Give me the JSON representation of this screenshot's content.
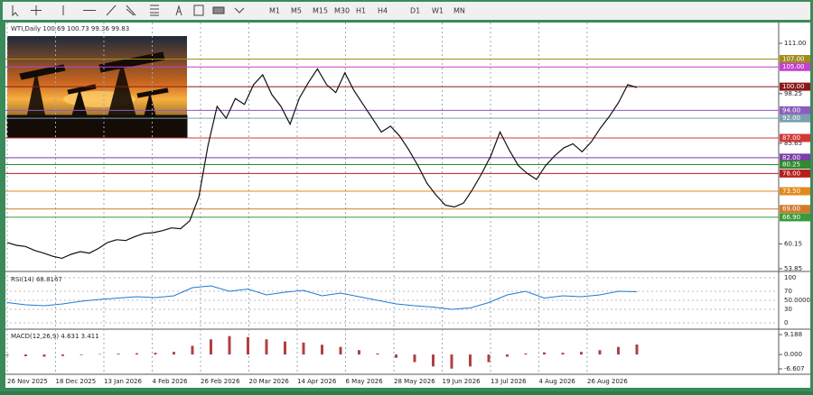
{
  "toolbar": {
    "timeframes": [
      "M1",
      "M5",
      "M15",
      "M30",
      "H1",
      "H4",
      "D1",
      "W1",
      "MN"
    ]
  },
  "chart": {
    "header": "WTI,Daily  100.69 100.73 99.36 99.83",
    "ylim": [
      53.85,
      111.0
    ],
    "price_ticks": [
      {
        "value": 111.0,
        "label": "111.00"
      },
      {
        "value": 98.25,
        "label": "98.25"
      },
      {
        "value": 85.65,
        "label": "85.65"
      },
      {
        "value": 60.15,
        "label": "60.15"
      },
      {
        "value": 53.85,
        "label": "53.85"
      }
    ],
    "levels": [
      {
        "value": 107.0,
        "label": "107.00",
        "color": "#a08c1c"
      },
      {
        "value": 105.0,
        "label": "105.00",
        "color": "#c63fd0"
      },
      {
        "value": 100.0,
        "label": "100.00",
        "color": "#8b1a1a"
      },
      {
        "value": 94.0,
        "label": "94.00",
        "color": "#8b5cc0"
      },
      {
        "value": 92.0,
        "label": "92.00",
        "color": "#7aa0b0"
      },
      {
        "value": 87.0,
        "label": "87.00",
        "color": "#d03838"
      },
      {
        "value": 82.0,
        "label": "82.00",
        "color": "#7a3fa8"
      },
      {
        "value": 80.25,
        "label": "80.25",
        "color": "#2e8b2e"
      },
      {
        "value": 78.0,
        "label": "78.00",
        "color": "#b81e1e"
      },
      {
        "value": 73.5,
        "label": "73.50",
        "color": "#e08a1e"
      },
      {
        "value": 69.0,
        "label": "69.00",
        "color": "#d07a2a"
      },
      {
        "value": 66.9,
        "label": "66.90",
        "color": "#3a9a3a"
      }
    ],
    "dates": [
      "26 Nov 2025",
      "18 Dec 2025",
      "13 Jan 2026",
      "4 Feb 2026",
      "26 Feb 2026",
      "20 Mar 2026",
      "14 Apr 2026",
      "6 May 2026",
      "28 May 2026",
      "19 Jun 2026",
      "13 Jul 2026",
      "4 Aug 2026",
      "26 Aug 2026"
    ],
    "close": [
      60.5,
      59.8,
      59.5,
      58.5,
      57.8,
      57.0,
      56.5,
      57.5,
      58.2,
      57.8,
      59.0,
      60.5,
      61.2,
      61.0,
      62.0,
      62.8,
      63.0,
      63.5,
      64.2,
      64.0,
      66.0,
      72.0,
      85.0,
      95.0,
      92.0,
      97.0,
      95.5,
      100.5,
      103.0,
      98.0,
      95.0,
      90.5,
      97.0,
      101.0,
      104.5,
      100.5,
      98.5,
      103.5,
      99.0,
      95.5,
      92.0,
      88.5,
      90.0,
      87.5,
      84.0,
      80.0,
      75.5,
      72.5,
      70.0,
      69.5,
      70.5,
      74.0,
      78.0,
      82.5,
      88.5,
      84.0,
      80.0,
      78.0,
      76.5,
      80.0,
      82.5,
      84.5,
      85.5,
      83.5,
      86.0,
      89.5,
      92.5,
      96.0,
      100.5,
      99.8
    ]
  },
  "rsi": {
    "label": "RSI(14) 68.8167",
    "ylim": [
      0,
      100
    ],
    "ticks": [
      {
        "value": 100,
        "label": "100"
      },
      {
        "value": 70,
        "label": "70"
      },
      {
        "value": 50,
        "label": "50.0000"
      },
      {
        "value": 30,
        "label": "30"
      },
      {
        "value": 0,
        "label": "0"
      }
    ],
    "values": [
      45,
      40,
      38,
      42,
      48,
      52,
      55,
      58,
      56,
      60,
      78,
      82,
      70,
      75,
      62,
      68,
      72,
      60,
      66,
      58,
      50,
      42,
      38,
      35,
      30,
      33,
      45,
      62,
      70,
      55,
      60,
      58,
      62,
      70,
      69
    ]
  },
  "macd": {
    "label": "MACD(12,26,9) 4.631 3.411",
    "ylim": [
      -6.607,
      9.188
    ],
    "ticks": [
      {
        "value": 9.188,
        "label": "9.188"
      },
      {
        "value": 0,
        "label": "0.000"
      },
      {
        "value": -6.607,
        "label": "-6.607"
      }
    ],
    "values": [
      -0.5,
      -0.8,
      -1,
      -0.7,
      -0.3,
      0.2,
      0.4,
      0.6,
      0.8,
      1.2,
      4,
      7,
      8.5,
      8,
      7,
      6,
      5.5,
      4.5,
      3.5,
      2,
      0.5,
      -1.5,
      -3.5,
      -5.5,
      -6.5,
      -5.5,
      -3.5,
      -1,
      0.5,
      1,
      0.8,
      1.2,
      2,
      3.5,
      4.6
    ]
  }
}
